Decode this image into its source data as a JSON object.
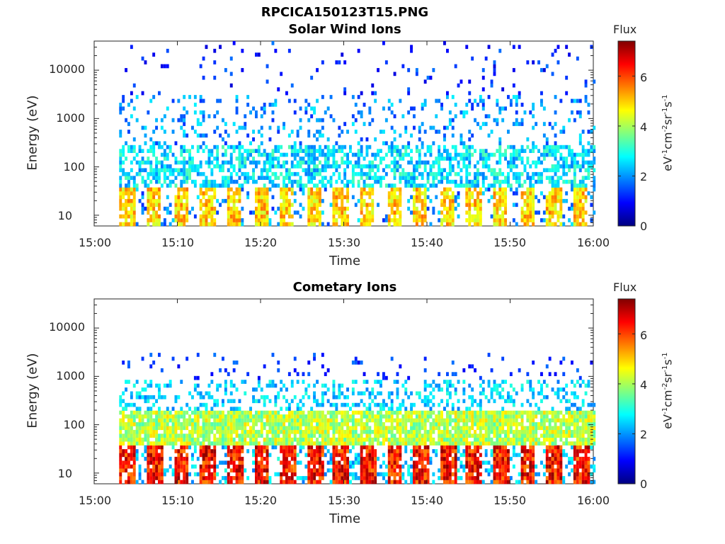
{
  "figure": {
    "main_title": "RPCICA150123T15.PNG"
  },
  "colors": {
    "colormap": [
      "#000080",
      "#0000ff",
      "#0080ff",
      "#00ffff",
      "#80ff80",
      "#ffff00",
      "#ff8000",
      "#ff0000",
      "#800000"
    ]
  },
  "chart_data": [
    {
      "type": "heatmap",
      "title": "Solar Wind Ions",
      "xlabel": "Time",
      "ylabel": "Energy (eV)",
      "y_scale": "log",
      "ylim": [
        6,
        40000
      ],
      "xlim": [
        "15:00",
        "16:00"
      ],
      "x_ticks": [
        "15:00",
        "15:10",
        "15:20",
        "15:30",
        "15:40",
        "15:50",
        "16:00"
      ],
      "y_ticks": [
        "10",
        "100",
        "1000",
        "10000"
      ],
      "colorbar": {
        "title": "Flux",
        "label": "eV",
        "label_sup1": "-1",
        "label_mid1": "cm",
        "label_sup2": "-2",
        "label_mid2": "sr",
        "label_sup3": "-1",
        "label_mid3": "s",
        "label_sup4": "-1",
        "range": [
          0,
          7.4
        ],
        "ticks": [
          "0",
          "2",
          "4",
          "6"
        ]
      },
      "pattern": "periodic",
      "sweep_period_min": 3.2,
      "data_start_min": 3,
      "data_end_min": 60
    },
    {
      "type": "heatmap",
      "title": "Cometary Ions",
      "xlabel": "Time",
      "ylabel": "Energy (eV)",
      "y_scale": "log",
      "ylim": [
        6,
        40000
      ],
      "xlim": [
        "15:00",
        "16:00"
      ],
      "x_ticks": [
        "15:00",
        "15:10",
        "15:20",
        "15:30",
        "15:40",
        "15:50",
        "16:00"
      ],
      "y_ticks": [
        "10",
        "100",
        "1000",
        "10000"
      ],
      "colorbar": {
        "title": "Flux",
        "label": "eV",
        "label_sup1": "-1",
        "label_mid1": "cm",
        "label_sup2": "-2",
        "label_mid2": "sr",
        "label_sup3": "-1",
        "label_mid3": "s",
        "label_sup4": "-1",
        "range": [
          0,
          7.4
        ],
        "ticks": [
          "0",
          "2",
          "4",
          "6"
        ]
      },
      "pattern": "periodic",
      "sweep_period_min": 3.2,
      "data_start_min": 3,
      "data_end_min": 60
    }
  ]
}
